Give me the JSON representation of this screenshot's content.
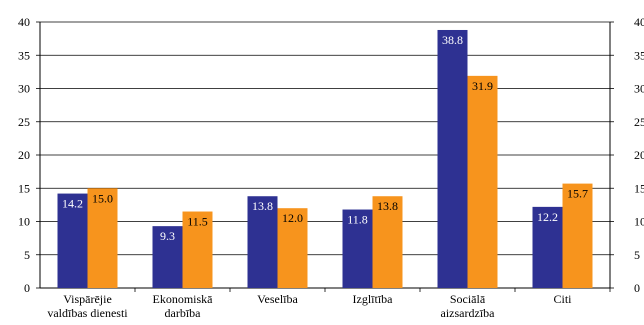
{
  "chart_data": {
    "type": "bar",
    "categories": [
      [
        "Vispārējie",
        "valdības dienesti"
      ],
      [
        "Ekonomiskā",
        "darbība"
      ],
      [
        "Veselība"
      ],
      [
        "Izglītība"
      ],
      [
        "Sociālā",
        "aizsardzība"
      ],
      [
        "Citi"
      ]
    ],
    "series": [
      {
        "values": [
          14.2,
          9.3,
          13.8,
          11.8,
          38.8,
          12.2
        ],
        "labels": [
          "14.2",
          "9.3",
          "13.8",
          "11.8",
          "38.8",
          "12.2"
        ],
        "color": "#2e3192",
        "label_color": "#ffffff"
      },
      {
        "values": [
          15.0,
          11.5,
          12.0,
          13.8,
          31.9,
          15.7
        ],
        "labels": [
          "15.0",
          "11.5",
          "12.0",
          "13.8",
          "31.9",
          "15.7"
        ],
        "color": "#f7941d",
        "label_color": "#000000"
      }
    ],
    "ylim": [
      0,
      40
    ],
    "yticks": [
      "0",
      "5",
      "10",
      "15",
      "20",
      "25",
      "30",
      "35",
      "40"
    ],
    "grid": true,
    "right_axis_ticks_mirrored": true,
    "title": "",
    "xlabel": "",
    "ylabel": ""
  }
}
